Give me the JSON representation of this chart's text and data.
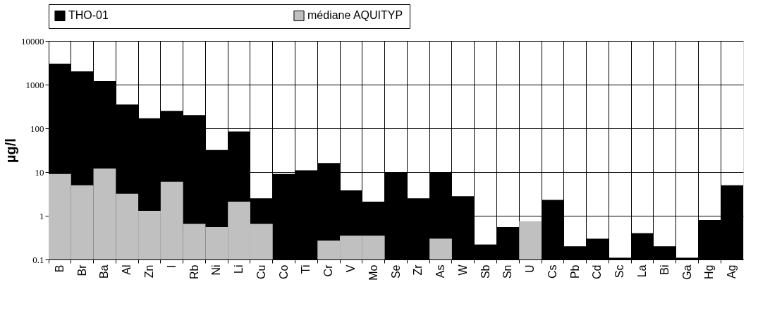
{
  "chart_data": {
    "type": "bar",
    "ylabel": "µg/l",
    "log": true,
    "ylim": [
      0.1,
      10000
    ],
    "yticks": [
      0.1,
      1,
      10,
      100,
      1000,
      10000
    ],
    "grid": true,
    "legend": "top",
    "categories": [
      "B",
      "Br",
      "Ba",
      "Al",
      "Zn",
      "I",
      "Rb",
      "Ni",
      "Li",
      "Cu",
      "Co",
      "Ti",
      "Cr",
      "V",
      "Mo",
      "Se",
      "Zr",
      "As",
      "W",
      "Sb",
      "Sn",
      "U",
      "Cs",
      "Pb",
      "Cd",
      "Sc",
      "La",
      "Bi",
      "Ga",
      "Hg",
      "Ag"
    ],
    "series": [
      {
        "name": "THO-01",
        "color": "#000000",
        "values": [
          3000,
          2000,
          1200,
          350,
          170,
          250,
          200,
          32,
          85,
          2.5,
          9,
          11,
          16,
          3.8,
          2.1,
          10,
          2.5,
          10,
          2.8,
          0.22,
          0.55,
          null,
          2.3,
          0.2,
          0.3,
          0.11,
          0.4,
          0.2,
          0.11,
          0.8,
          5
        ]
      },
      {
        "name": "médiane AQUITYP",
        "color": "#c0c0c0",
        "values": [
          9,
          5,
          12,
          3.2,
          1.3,
          6,
          0.65,
          0.55,
          2.1,
          0.65,
          null,
          null,
          0.27,
          0.35,
          0.35,
          null,
          null,
          0.3,
          null,
          null,
          null,
          0.75,
          null,
          null,
          null,
          null,
          null,
          null,
          null,
          null,
          null
        ]
      }
    ]
  }
}
